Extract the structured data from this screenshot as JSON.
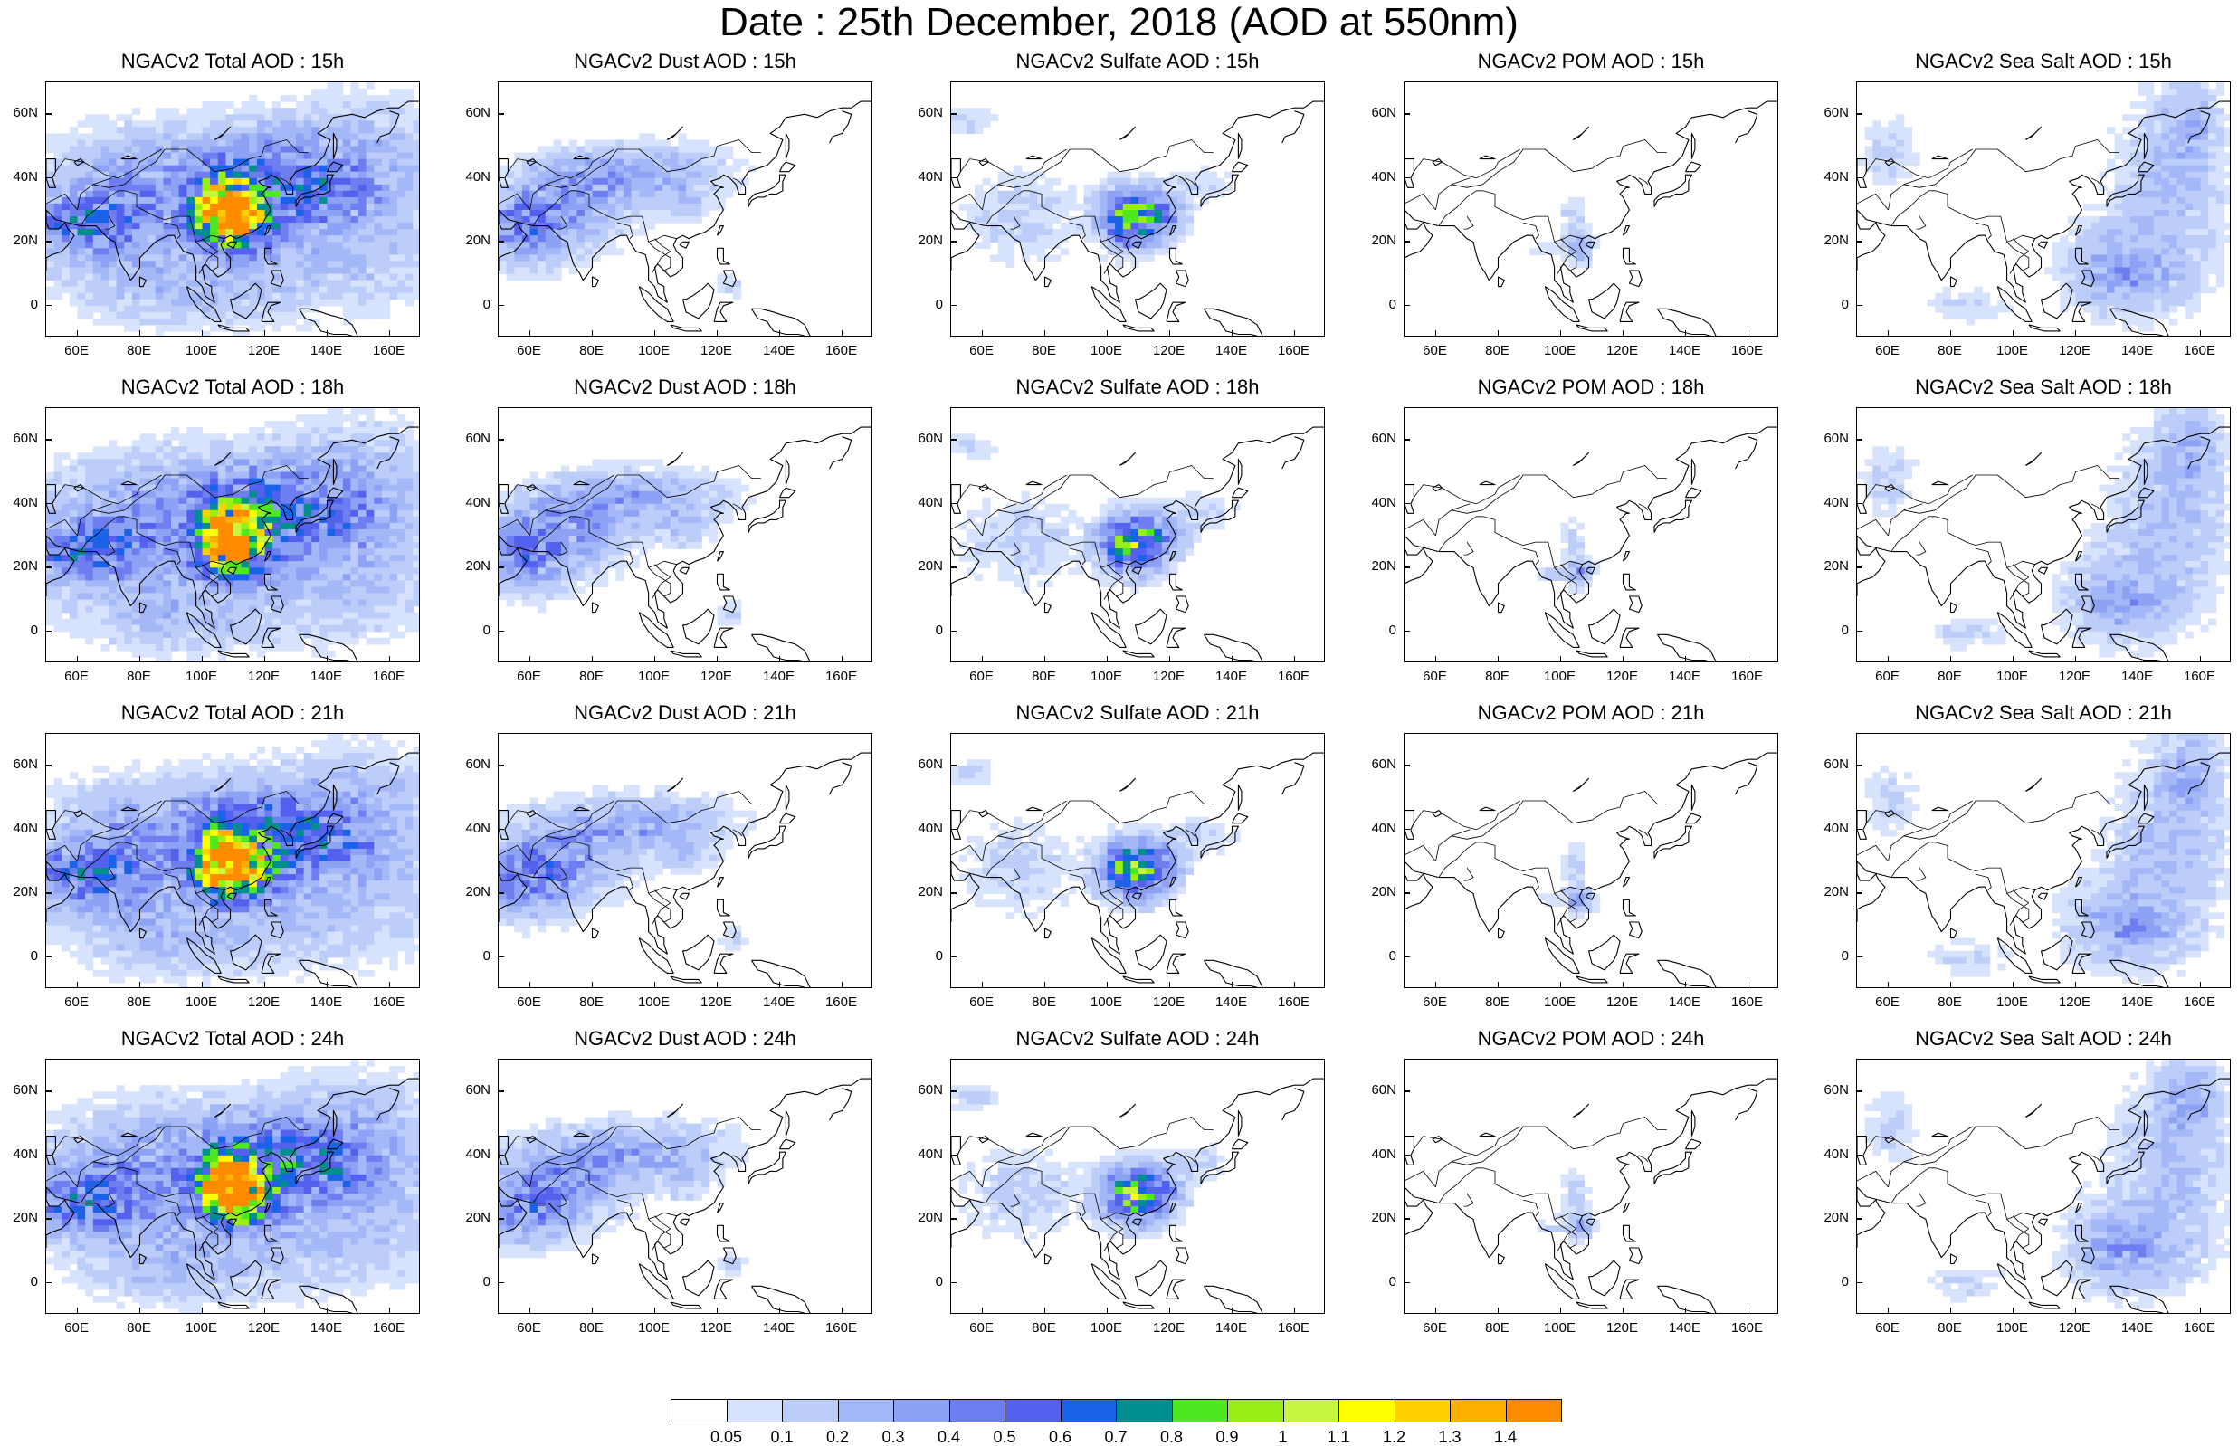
{
  "title": "Date : 25th December, 2018 (AOD at 550nm)",
  "x_ticks": [
    "60E",
    "80E",
    "100E",
    "120E",
    "140E",
    "160E"
  ],
  "y_ticks": [
    "60N",
    "40N",
    "20N",
    "0"
  ],
  "map": {
    "type": "map",
    "extent_lon": [
      50,
      170
    ],
    "extent_lat": [
      -10,
      70
    ],
    "coastline_color": "#000000",
    "missing_color": "#ffffff"
  },
  "panels": [
    {
      "title": "NGACv2 Total AOD : 15h",
      "variable": "total",
      "hour": 15
    },
    {
      "title": "NGACv2 Dust AOD : 15h",
      "variable": "dust",
      "hour": 15
    },
    {
      "title": "NGACv2 Sulfate AOD : 15h",
      "variable": "sulfate",
      "hour": 15
    },
    {
      "title": "NGACv2 POM AOD : 15h",
      "variable": "pom",
      "hour": 15
    },
    {
      "title": "NGACv2 Sea Salt AOD : 15h",
      "variable": "seasalt",
      "hour": 15
    },
    {
      "title": "NGACv2 Total AOD : 18h",
      "variable": "total",
      "hour": 18
    },
    {
      "title": "NGACv2 Dust AOD : 18h",
      "variable": "dust",
      "hour": 18
    },
    {
      "title": "NGACv2 Sulfate AOD : 18h",
      "variable": "sulfate",
      "hour": 18
    },
    {
      "title": "NGACv2 POM AOD : 18h",
      "variable": "pom",
      "hour": 18
    },
    {
      "title": "NGACv2 Sea Salt AOD : 18h",
      "variable": "seasalt",
      "hour": 18
    },
    {
      "title": "NGACv2 Total AOD : 21h",
      "variable": "total",
      "hour": 21
    },
    {
      "title": "NGACv2 Dust AOD : 21h",
      "variable": "dust",
      "hour": 21
    },
    {
      "title": "NGACv2 Sulfate AOD : 21h",
      "variable": "sulfate",
      "hour": 21
    },
    {
      "title": "NGACv2 POM AOD : 21h",
      "variable": "pom",
      "hour": 21
    },
    {
      "title": "NGACv2 Sea Salt AOD : 21h",
      "variable": "seasalt",
      "hour": 21
    },
    {
      "title": "NGACv2 Total AOD : 24h",
      "variable": "total",
      "hour": 24
    },
    {
      "title": "NGACv2 Dust AOD : 24h",
      "variable": "dust",
      "hour": 24
    },
    {
      "title": "NGACv2 Sulfate AOD : 24h",
      "variable": "sulfate",
      "hour": 24
    },
    {
      "title": "NGACv2 POM AOD : 24h",
      "variable": "pom",
      "hour": 24
    },
    {
      "title": "NGACv2 Sea Salt  AOD : 24h",
      "variable": "seasalt",
      "hour": 24
    }
  ],
  "colorbar": {
    "labels": [
      "0.05",
      "0.1",
      "0.2",
      "0.3",
      "0.4",
      "0.5",
      "0.6",
      "0.7",
      "0.8",
      "0.9",
      "1",
      "1.1",
      "1.2",
      "1.3",
      "1.4"
    ],
    "colors": [
      "#ffffff",
      "#d7e2fc",
      "#bccdf9",
      "#a4b8f7",
      "#8da2f5",
      "#6e7ef0",
      "#5460ee",
      "#1a63e8",
      "#008e8e",
      "#4ee81e",
      "#99ef14",
      "#c8f53d",
      "#ffff00",
      "#ffd000",
      "#ffb000",
      "#ff8c00",
      "#ff2b00"
    ]
  }
}
